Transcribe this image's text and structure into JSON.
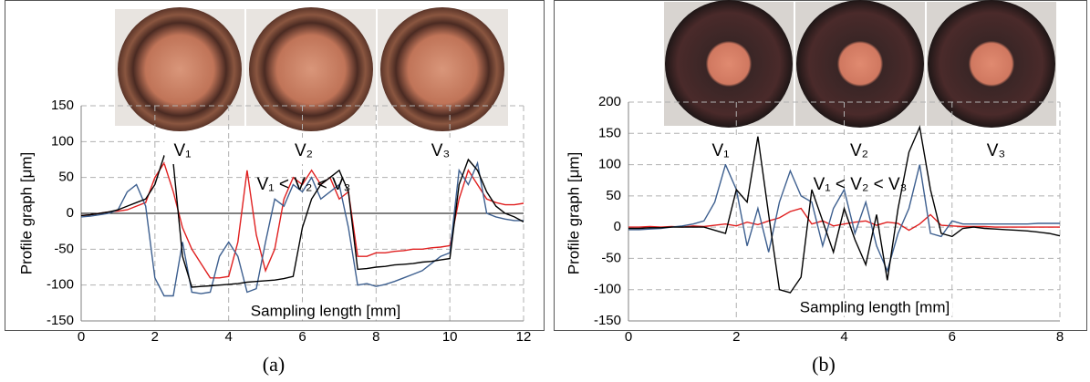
{
  "chart_data": [
    {
      "type": "line",
      "caption": "(a)",
      "x_label": "Sampling length [mm]",
      "y_label": "Profile graph [μm]",
      "annotations": [
        "V₁",
        "V₂",
        "V₃",
        "V₁ < V₂ < V₃"
      ],
      "xlim": [
        0,
        12
      ],
      "ylim": [
        -150,
        150
      ],
      "xticks": [
        0,
        2,
        4,
        6,
        8,
        10,
        12
      ],
      "yticks": [
        -150,
        -100,
        -50,
        0,
        50,
        100,
        150
      ],
      "grid": true,
      "zero_line": true,
      "x": [
        0,
        0.25,
        0.5,
        0.75,
        1,
        1.25,
        1.5,
        1.75,
        2,
        2.25,
        2.5,
        2.75,
        3,
        3.25,
        3.5,
        3.75,
        4,
        4.25,
        4.5,
        4.75,
        5,
        5.25,
        5.5,
        5.75,
        6,
        6.25,
        6.5,
        6.75,
        7,
        7.25,
        7.5,
        7.75,
        8,
        8.25,
        8.5,
        8.75,
        9,
        9.25,
        9.5,
        9.75,
        10,
        10.25,
        10.5,
        10.75,
        11,
        11.25,
        11.5,
        11.75,
        12
      ],
      "series": [
        {
          "color": "#e02020",
          "values": [
            -3,
            -2,
            0,
            2,
            3,
            5,
            10,
            15,
            50,
            70,
            30,
            -20,
            -50,
            -70,
            -90,
            -90,
            -88,
            -40,
            60,
            -30,
            -80,
            -50,
            20,
            50,
            40,
            60,
            40,
            50,
            20,
            30,
            -60,
            -60,
            -55,
            -55,
            -53,
            -52,
            -50,
            -50,
            -48,
            -47,
            -45,
            20,
            60,
            40,
            20,
            15,
            12,
            12,
            14
          ]
        },
        {
          "color": "#3d5f8f",
          "values": [
            -5,
            -4,
            -2,
            0,
            5,
            30,
            40,
            10,
            -90,
            -115,
            -115,
            -40,
            -110,
            -112,
            -110,
            -60,
            -40,
            -60,
            -110,
            -105,
            -40,
            20,
            10,
            40,
            30,
            50,
            20,
            30,
            40,
            -20,
            -100,
            -98,
            -102,
            -99,
            -95,
            -90,
            -85,
            -80,
            -70,
            -60,
            -55,
            60,
            40,
            70,
            0,
            -5,
            -8,
            -10,
            -10
          ]
        },
        {
          "color": "#000000",
          "values": [
            -3,
            -2,
            0,
            2,
            5,
            10,
            15,
            20,
            40,
            80,
            70,
            -60,
            -103,
            -102,
            -101,
            -100,
            -99,
            -98,
            -96,
            -95,
            -94,
            -93,
            -91,
            -88,
            -20,
            20,
            40,
            50,
            60,
            30,
            -78,
            -77,
            -75,
            -74,
            -72,
            -71,
            -70,
            -68,
            -67,
            -65,
            -63,
            40,
            75,
            60,
            30,
            10,
            0,
            -5,
            -12
          ]
        }
      ]
    },
    {
      "type": "line",
      "caption": "(b)",
      "x_label": "Sampling length [mm]",
      "y_label": "Profile graph [μm]",
      "annotations": [
        "V₁",
        "V₂",
        "V₃",
        "V₁ < V₂ < V₃"
      ],
      "xlim": [
        0,
        8
      ],
      "ylim": [
        -150,
        200
      ],
      "xticks": [
        0,
        2,
        4,
        6,
        8
      ],
      "yticks": [
        -150,
        -100,
        -50,
        0,
        50,
        100,
        150,
        200
      ],
      "grid": true,
      "zero_line": false,
      "x": [
        0,
        0.2,
        0.4,
        0.6,
        0.8,
        1,
        1.2,
        1.4,
        1.6,
        1.8,
        2,
        2.2,
        2.4,
        2.6,
        2.8,
        3,
        3.2,
        3.4,
        3.6,
        3.8,
        4,
        4.2,
        4.4,
        4.6,
        4.8,
        5,
        5.2,
        5.4,
        5.6,
        5.8,
        6,
        6.2,
        6.4,
        6.6,
        6.8,
        7,
        7.2,
        7.4,
        7.6,
        7.8,
        8
      ],
      "series": [
        {
          "color": "#e02020",
          "values": [
            0,
            0,
            1,
            0,
            1,
            0,
            2,
            1,
            3,
            5,
            2,
            8,
            4,
            10,
            15,
            25,
            30,
            5,
            10,
            2,
            5,
            8,
            10,
            3,
            8,
            6,
            -5,
            5,
            20,
            3,
            2,
            1,
            1,
            1,
            0,
            0,
            0,
            0,
            0,
            0,
            0
          ]
        },
        {
          "color": "#3d5f8f",
          "values": [
            -4,
            -4,
            -3,
            -2,
            0,
            2,
            5,
            10,
            40,
            100,
            60,
            -30,
            30,
            -40,
            40,
            90,
            50,
            40,
            -30,
            30,
            60,
            -10,
            40,
            -30,
            -70,
            -10,
            30,
            100,
            -10,
            -15,
            10,
            5,
            5,
            5,
            5,
            5,
            5,
            5,
            6,
            6,
            6
          ]
        },
        {
          "color": "#000000",
          "values": [
            -2,
            -2,
            -1,
            -1,
            0,
            0,
            0,
            0,
            -5,
            -10,
            60,
            40,
            145,
            20,
            -100,
            -105,
            -80,
            60,
            10,
            -40,
            30,
            -20,
            -60,
            20,
            -85,
            30,
            120,
            160,
            60,
            -10,
            -15,
            -2,
            0,
            -2,
            -3,
            -4,
            -5,
            -6,
            -8,
            -10,
            -14
          ]
        }
      ]
    }
  ]
}
